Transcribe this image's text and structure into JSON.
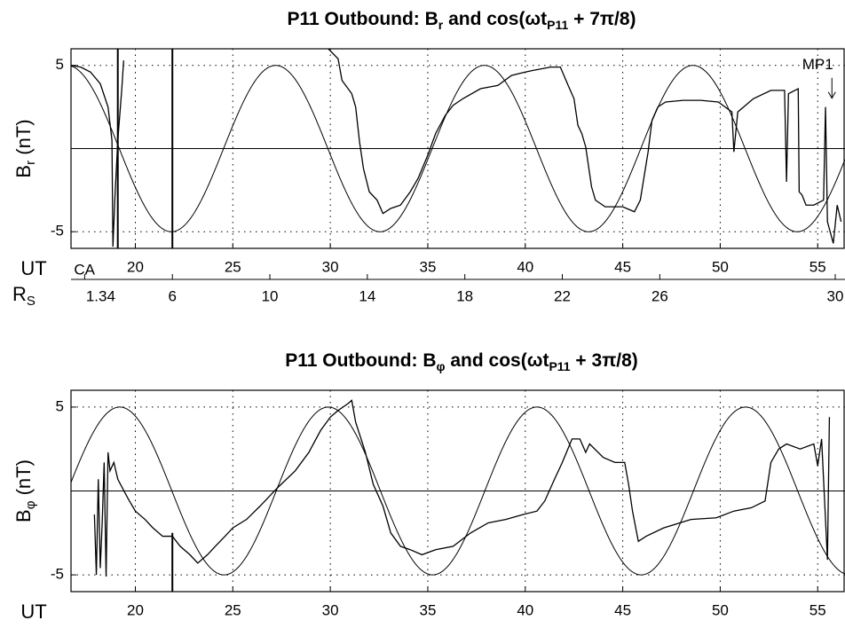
{
  "chart_data": [
    {
      "type": "line",
      "title_parts": [
        "P11 Outbound: B",
        "r",
        " and cos(ωt",
        "P11",
        " + 7π/8)"
      ],
      "ylabel_parts": [
        "B",
        "r",
        " (nT)"
      ],
      "xlabel": "UT",
      "xlim": [
        16.7,
        56.4
      ],
      "ylim": [
        -6,
        6
      ],
      "xticks": [
        20,
        25,
        30,
        35,
        40,
        45,
        50,
        55
      ],
      "yticks": [
        -5,
        5
      ],
      "grid": "dotted",
      "zero_line": true,
      "series": [
        {
          "color": "#000000",
          "x": [
            16.7,
            17.2,
            17.7,
            18.2,
            18.6,
            18.8,
            18.85,
            18.95,
            19.1,
            19.3,
            19.4,
            24.6,
            29.9,
            30.4,
            30.6,
            31.1,
            31.3,
            31.5,
            31.7,
            32.0,
            32.4,
            32.7,
            33.1,
            33.6,
            34.1,
            34.5,
            35.0,
            35.4,
            35.9,
            36.3,
            36.8,
            37.7,
            38.6,
            39.3,
            40.0,
            40.4,
            41.3,
            41.8,
            42.2,
            42.5,
            42.7,
            42.9,
            43.1,
            43.4,
            43.6,
            44.1,
            45.0,
            45.6,
            45.9,
            46.3,
            46.5,
            46.8,
            47.2,
            48.1,
            49.0,
            49.9,
            50.6,
            50.7,
            50.9,
            51.7,
            52.6,
            53.3,
            53.4,
            53.5,
            54.0,
            54.05,
            54.2,
            54.4,
            54.8,
            55.3,
            55.4,
            55.5,
            55.8,
            56.0,
            56.2
          ],
          "values": [
            5,
            4.9,
            4.6,
            3.9,
            2.5,
            0.5,
            -5.9,
            -3,
            0.5,
            3.5,
            5.3,
            null,
            6,
            5.4,
            4.1,
            3.3,
            2.5,
            0.4,
            -1.2,
            -2.6,
            -3.1,
            -3.9,
            -3.6,
            -3.4,
            -2.6,
            -1.8,
            -0.4,
            0.9,
            2.0,
            2.6,
            3.0,
            3.6,
            3.8,
            4.4,
            4.6,
            4.7,
            4.9,
            4.9,
            3.8,
            3.0,
            1.4,
            0.9,
            0.1,
            -2.3,
            -3.1,
            -3.5,
            -3.5,
            -3.8,
            -3.1,
            -0.2,
            1.7,
            2.5,
            2.8,
            2.9,
            2.9,
            2.8,
            2.2,
            -0.2,
            2.2,
            3.0,
            3.5,
            3.5,
            -2.0,
            3.3,
            3.6,
            -2.6,
            -2.8,
            -3.4,
            -3.4,
            -3.1,
            2.5,
            -4.4,
            -5.7,
            -3.4,
            -4.4
          ]
        }
      ],
      "cosine": {
        "amplitude": 5,
        "period": 10.7,
        "peak_ut": 27.2
      },
      "markers": [
        {
          "x": 19.1,
          "y": [
            -6,
            6
          ]
        },
        {
          "x": 21.9,
          "y": [
            -6,
            6
          ]
        }
      ],
      "annotations": [
        {
          "text": "MP1",
          "x": 55.0,
          "y": 5
        }
      ],
      "rs_label_parts": [
        "R",
        "S"
      ],
      "rs_ticks": [
        {
          "value": 17.4,
          "label": "1.34"
        },
        {
          "value": 21.9,
          "label": "6"
        },
        {
          "value": 26.9,
          "label": "10"
        },
        {
          "value": 31.9,
          "label": "14"
        },
        {
          "value": 36.9,
          "label": "18"
        },
        {
          "value": 41.9,
          "label": "22"
        },
        {
          "value": 46.9,
          "label": "26"
        },
        {
          "value": 55.9,
          "label": "30"
        }
      ],
      "rs_annotation": "CA"
    },
    {
      "type": "line",
      "title_parts": [
        "P11 Outbound: B",
        "φ",
        " and cos(ωt",
        "P11",
        " + 3π/8)"
      ],
      "ylabel_parts": [
        "B",
        "φ",
        " (nT)"
      ],
      "xlabel": "UT",
      "xlim": [
        16.7,
        56.4
      ],
      "ylim": [
        -6,
        6
      ],
      "xticks": [
        20,
        25,
        30,
        35,
        40,
        45,
        50,
        55
      ],
      "yticks": [
        -5,
        5
      ],
      "grid": "dotted",
      "zero_line": true,
      "series": [
        {
          "color": "#000000",
          "x": [
            17.9,
            18.0,
            18.1,
            18.2,
            18.3,
            18.4,
            18.5,
            18.6,
            18.7,
            18.9,
            19.1,
            19.6,
            20.0,
            20.5,
            20.9,
            21.4,
            21.9,
            22.3,
            22.8,
            23.2,
            23.7,
            24.1,
            24.6,
            25.0,
            25.7,
            26.4,
            27.3,
            28.2,
            28.9,
            29.5,
            30.0,
            30.4,
            30.9,
            31.1,
            31.3,
            31.8,
            32.2,
            32.7,
            33.1,
            33.6,
            34.1,
            34.7,
            35.4,
            36.3,
            37.2,
            38.1,
            39.0,
            39.9,
            40.6,
            41.0,
            41.5,
            41.9,
            42.4,
            42.8,
            43.1,
            43.3,
            44.0,
            44.6,
            45.1,
            45.3,
            45.5,
            45.8,
            46.2,
            47.1,
            48.5,
            49.8,
            50.7,
            51.6,
            52.3,
            52.6,
            53.0,
            53.4,
            54.1,
            54.8,
            55.0,
            55.2,
            55.5,
            55.6
          ],
          "values": [
            -1.4,
            -5,
            0.7,
            -4.6,
            -1.9,
            1.7,
            -5.1,
            2.3,
            1.2,
            1.7,
            0.7,
            -0.4,
            -1.2,
            -1.7,
            -2.2,
            -2.7,
            -2.7,
            -3.3,
            -3.8,
            -4.3,
            -3.8,
            -3.3,
            -2.7,
            -2.2,
            -1.7,
            -0.9,
            0.2,
            1.2,
            2.3,
            3.6,
            4.4,
            4.8,
            5.2,
            5.4,
            4.1,
            2.3,
            0.4,
            -0.9,
            -2.5,
            -3.3,
            -3.5,
            -3.8,
            -3.5,
            -3.3,
            -2.5,
            -1.9,
            -1.7,
            -1.4,
            -1.2,
            -0.6,
            0.7,
            1.7,
            3.1,
            3.1,
            2.3,
            2.8,
            2.0,
            1.7,
            1.7,
            0.4,
            -1.2,
            -3.0,
            -2.7,
            -2.2,
            -1.7,
            -1.6,
            -1.2,
            -1.0,
            -0.6,
            1.7,
            2.5,
            2.8,
            2.5,
            2.8,
            1.5,
            3.1,
            -4.1,
            4.4
          ]
        }
      ],
      "cosine": {
        "amplitude": 5,
        "period": 10.7,
        "peak_ut": 19.2
      },
      "markers": [
        {
          "x": 21.9,
          "y": [
            -6,
            -2.5
          ]
        }
      ]
    }
  ]
}
